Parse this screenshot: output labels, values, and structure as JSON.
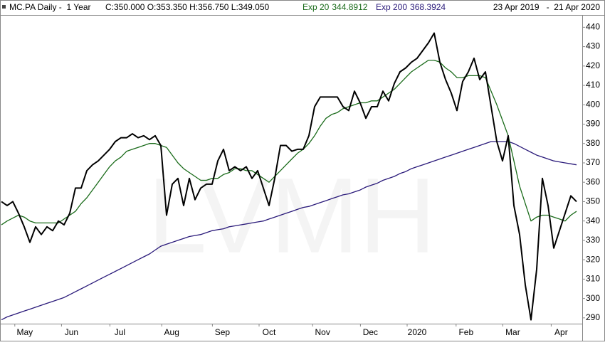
{
  "header": {
    "symbol": "MC.PA Daily -  1 Year",
    "ohlc": "C:350.000 O:353.350 H:356.750 L:349.050",
    "date_range": "23 Apr 2019   -  21 Apr 2020"
  },
  "chart_data": {
    "type": "line",
    "watermark": "LVMH",
    "xlim": [
      0,
      102
    ],
    "ylim": [
      287,
      446
    ],
    "xticks": [
      {
        "value": 4.1,
        "label": "May"
      },
      {
        "value": 12.3,
        "label": "Jun"
      },
      {
        "value": 20.8,
        "label": "Jul"
      },
      {
        "value": 29.9,
        "label": "Aug"
      },
      {
        "value": 38.8,
        "label": "Sep"
      },
      {
        "value": 47,
        "label": "Oct"
      },
      {
        "value": 56.4,
        "label": "Nov"
      },
      {
        "value": 64.8,
        "label": "Dec"
      },
      {
        "value": 73,
        "label": "2020"
      },
      {
        "value": 81.6,
        "label": "Feb"
      },
      {
        "value": 89.8,
        "label": "Mar"
      },
      {
        "value": 98.3,
        "label": "Apr"
      }
    ],
    "yticks": [
      290,
      300,
      310,
      320,
      330,
      340,
      350,
      360,
      370,
      380,
      390,
      400,
      410,
      420,
      430,
      440
    ],
    "series": [
      {
        "name": "Exp 200",
        "last": 368.3924,
        "color": "#2a1a7a",
        "values": [
          289,
          290.5,
          291.5,
          292.5,
          293.5,
          294.5,
          295.5,
          296.5,
          297.5,
          298.5,
          299.5,
          300.5,
          302,
          303.5,
          305,
          306.5,
          308,
          309.5,
          311,
          312.5,
          314,
          315.5,
          317,
          318.5,
          320,
          321.5,
          323,
          325,
          327,
          328,
          329,
          330,
          331,
          332,
          332.5,
          333,
          334,
          335,
          335.5,
          336,
          337,
          337.5,
          338,
          338.5,
          339,
          339.5,
          340,
          341,
          342,
          343,
          344,
          345,
          346,
          347,
          347.5,
          348.5,
          349.5,
          350.5,
          351.5,
          352.5,
          353.5,
          354,
          355,
          356,
          357.5,
          358.5,
          359.5,
          361,
          362,
          363,
          364.5,
          365.5,
          367,
          368,
          369,
          370,
          371,
          372,
          373,
          374,
          375,
          376,
          377,
          378,
          379,
          380,
          381,
          381,
          381,
          381,
          380,
          378.5,
          377,
          375.5,
          374,
          373,
          372,
          371,
          370.5,
          370,
          369.5,
          369
        ]
      },
      {
        "name": "Exp 20",
        "last": 344.8912,
        "color": "#1a6b1a",
        "values": [
          338,
          340,
          341.5,
          343,
          342,
          340,
          339,
          339,
          339,
          339,
          339,
          341,
          343,
          345,
          349,
          352,
          356,
          360,
          364,
          368,
          371,
          373,
          376,
          377,
          378,
          379,
          380,
          380,
          379,
          378,
          374,
          370,
          367,
          365,
          363,
          361,
          361,
          362,
          362,
          364,
          365,
          367,
          367,
          366,
          366,
          364,
          362,
          360,
          363,
          366,
          369,
          372,
          375,
          377,
          380,
          384,
          389,
          393,
          395,
          396,
          398,
          399,
          400,
          401,
          401,
          402,
          402,
          404,
          406,
          408,
          411,
          414,
          417,
          419,
          421,
          423,
          423,
          422,
          419,
          417,
          414,
          414,
          415,
          415,
          415,
          414,
          407,
          400,
          392,
          384,
          371,
          358,
          349,
          340,
          342,
          343,
          343,
          342,
          341,
          340,
          343,
          345
        ]
      },
      {
        "color": "#000000",
        "values": [
          350,
          348,
          350,
          344,
          337,
          329,
          337,
          333,
          337,
          335,
          340,
          338,
          344,
          357,
          357,
          366,
          369,
          371,
          374,
          377,
          381,
          383,
          383,
          385,
          383,
          384,
          382,
          384,
          379,
          343,
          359,
          362,
          348,
          362,
          351,
          357,
          359,
          359,
          371,
          377,
          366,
          368,
          366,
          368,
          362,
          366,
          357,
          348,
          362,
          379,
          379,
          376,
          377,
          377,
          384,
          399,
          404,
          404,
          404,
          404,
          399,
          397,
          407,
          401,
          393,
          399,
          399,
          407,
          402,
          411,
          417,
          419,
          422,
          424,
          428,
          432,
          437,
          422,
          413,
          406,
          397,
          412,
          417,
          424,
          413,
          417,
          399,
          381,
          371,
          384,
          348,
          333,
          307,
          289,
          315,
          362,
          348,
          326,
          335,
          344,
          353,
          350
        ]
      }
    ]
  }
}
